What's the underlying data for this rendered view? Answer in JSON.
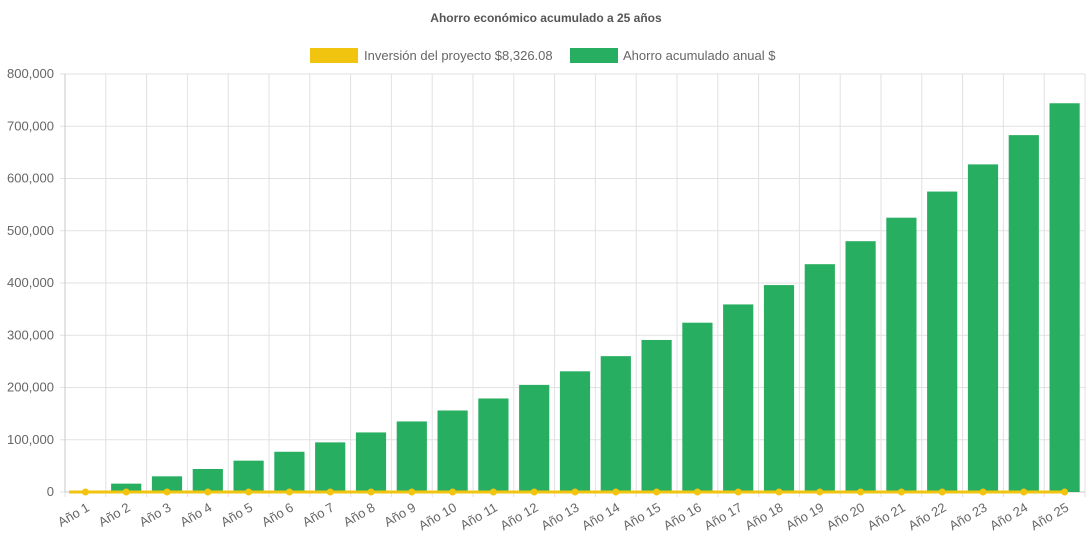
{
  "chart_data": {
    "type": "bar",
    "title": "Ahorro económico acumulado a 25 años",
    "categories": [
      "Año 1",
      "Año 2",
      "Año 3",
      "Año 4",
      "Año 5",
      "Año 6",
      "Año 7",
      "Año 8",
      "Año 9",
      "Año 10",
      "Año 11",
      "Año 12",
      "Año 13",
      "Año 14",
      "Año 15",
      "Año 16",
      "Año 17",
      "Año 18",
      "Año 19",
      "Año 20",
      "Año 21",
      "Año 22",
      "Año 23",
      "Año 24",
      "Año 25"
    ],
    "series": [
      {
        "name": "Inversión del proyecto $8,326.08",
        "type": "line",
        "color": "#f1c40f",
        "values": [
          0,
          0,
          0,
          0,
          0,
          0,
          0,
          0,
          0,
          0,
          0,
          0,
          0,
          0,
          0,
          0,
          0,
          0,
          0,
          0,
          0,
          0,
          0,
          0,
          0
        ]
      },
      {
        "name": "Ahorro acumulado anual $",
        "type": "bar",
        "color": "#27ae60",
        "values": [
          2000,
          16000,
          30000,
          44000,
          60000,
          77000,
          95000,
          114000,
          135000,
          156000,
          179000,
          205000,
          231000,
          260000,
          291000,
          324000,
          359000,
          396000,
          436000,
          480000,
          525000,
          575000,
          627000,
          683000,
          744000
        ]
      }
    ],
    "ylim": [
      0,
      800000
    ],
    "yticks": [
      0,
      100000,
      200000,
      300000,
      400000,
      500000,
      600000,
      700000,
      800000
    ],
    "ytick_labels": [
      "0",
      "100,000",
      "200,000",
      "300,000",
      "400,000",
      "500,000",
      "600,000",
      "700,000",
      "800,000"
    ],
    "grid": true,
    "legend_position": "top"
  }
}
